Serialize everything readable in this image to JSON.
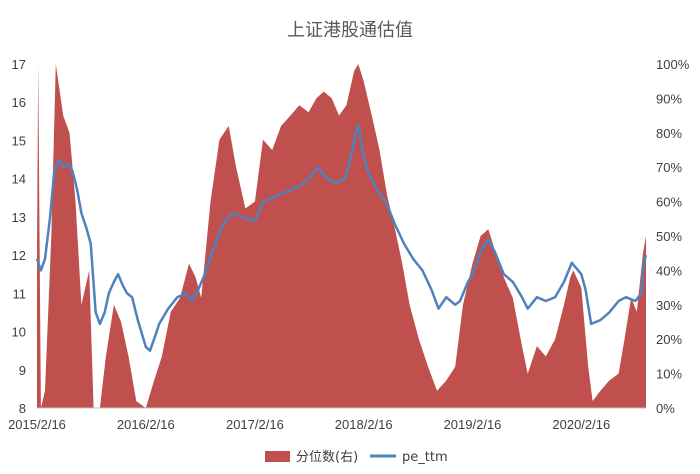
{
  "chart_data": {
    "type": "line",
    "title": "上证港股通估值",
    "x_tick_labels": [
      "2015/2/16",
      "2016/2/16",
      "2017/2/16",
      "2018/2/16",
      "2019/2/16",
      "2020/2/16"
    ],
    "x_range": [
      "2015-02-16",
      "2020-09-20"
    ],
    "y_left": {
      "min": 8,
      "max": 17,
      "ticks": [
        "8",
        "9",
        "10",
        "11",
        "12",
        "13",
        "14",
        "15",
        "16",
        "17"
      ]
    },
    "y_right": {
      "min": 0,
      "max": 100,
      "ticks": [
        "0%",
        "10%",
        "20%",
        "30%",
        "40%",
        "50%",
        "60%",
        "70%",
        "80%",
        "90%",
        "100%"
      ]
    },
    "grid": false,
    "legend_position": "bottom",
    "series": [
      {
        "name": "分位数(右)",
        "type": "area",
        "axis": "right",
        "color": "#c0504d",
        "points": [
          [
            "2015-02-16",
            45
          ],
          [
            "2015-02-20",
            100
          ],
          [
            "2015-03-01",
            0
          ],
          [
            "2015-03-15",
            5
          ],
          [
            "2015-04-05",
            50
          ],
          [
            "2015-04-20",
            100
          ],
          [
            "2015-05-15",
            85
          ],
          [
            "2015-06-05",
            80
          ],
          [
            "2015-06-25",
            60
          ],
          [
            "2015-07-15",
            30
          ],
          [
            "2015-08-10",
            40
          ],
          [
            "2015-08-25",
            0
          ],
          [
            "2015-09-15",
            0
          ],
          [
            "2015-10-05",
            15
          ],
          [
            "2015-11-01",
            30
          ],
          [
            "2015-11-25",
            25
          ],
          [
            "2015-12-20",
            15
          ],
          [
            "2016-01-15",
            2
          ],
          [
            "2016-02-16",
            0
          ],
          [
            "2016-03-15",
            8
          ],
          [
            "2016-04-10",
            15
          ],
          [
            "2016-05-10",
            28
          ],
          [
            "2016-06-10",
            32
          ],
          [
            "2016-07-10",
            42
          ],
          [
            "2016-08-01",
            38
          ],
          [
            "2016-08-20",
            32
          ],
          [
            "2016-09-20",
            60
          ],
          [
            "2016-10-20",
            78
          ],
          [
            "2016-11-20",
            82
          ],
          [
            "2016-12-15",
            70
          ],
          [
            "2017-01-15",
            58
          ],
          [
            "2017-02-16",
            60
          ],
          [
            "2017-03-15",
            78
          ],
          [
            "2017-04-15",
            75
          ],
          [
            "2017-05-15",
            82
          ],
          [
            "2017-06-15",
            85
          ],
          [
            "2017-07-15",
            88
          ],
          [
            "2017-08-15",
            86
          ],
          [
            "2017-09-10",
            90
          ],
          [
            "2017-10-05",
            92
          ],
          [
            "2017-11-01",
            90
          ],
          [
            "2017-11-25",
            85
          ],
          [
            "2017-12-20",
            88
          ],
          [
            "2018-01-15",
            98
          ],
          [
            "2018-01-29",
            100
          ],
          [
            "2018-02-16",
            95
          ],
          [
            "2018-03-15",
            85
          ],
          [
            "2018-04-10",
            75
          ],
          [
            "2018-05-05",
            62
          ],
          [
            "2018-06-01",
            52
          ],
          [
            "2018-06-25",
            42
          ],
          [
            "2018-07-20",
            30
          ],
          [
            "2018-08-20",
            20
          ],
          [
            "2018-09-20",
            12
          ],
          [
            "2018-10-20",
            5
          ],
          [
            "2018-11-20",
            8
          ],
          [
            "2018-12-20",
            12
          ],
          [
            "2019-01-15",
            30
          ],
          [
            "2019-02-16",
            42
          ],
          [
            "2019-03-15",
            50
          ],
          [
            "2019-04-10",
            52
          ],
          [
            "2019-05-05",
            45
          ],
          [
            "2019-06-01",
            38
          ],
          [
            "2019-07-01",
            32
          ],
          [
            "2019-08-01",
            18
          ],
          [
            "2019-08-20",
            10
          ],
          [
            "2019-09-20",
            18
          ],
          [
            "2019-10-20",
            15
          ],
          [
            "2019-11-20",
            20
          ],
          [
            "2019-12-20",
            30
          ],
          [
            "2020-01-10",
            38
          ],
          [
            "2020-01-20",
            40
          ],
          [
            "2020-02-16",
            35
          ],
          [
            "2020-03-10",
            12
          ],
          [
            "2020-03-25",
            2
          ],
          [
            "2020-04-20",
            5
          ],
          [
            "2020-05-20",
            8
          ],
          [
            "2020-06-20",
            10
          ],
          [
            "2020-07-10",
            20
          ],
          [
            "2020-08-01",
            32
          ],
          [
            "2020-08-20",
            28
          ],
          [
            "2020-09-10",
            45
          ],
          [
            "2020-09-20",
            50
          ]
        ]
      },
      {
        "name": "pe_ttm",
        "type": "line",
        "axis": "left",
        "color": "#4f81bd",
        "points": [
          [
            "2015-02-16",
            11.9
          ],
          [
            "2015-03-01",
            11.6
          ],
          [
            "2015-03-15",
            11.9
          ],
          [
            "2015-04-01",
            13.0
          ],
          [
            "2015-04-15",
            14.2
          ],
          [
            "2015-05-01",
            14.5
          ],
          [
            "2015-05-15",
            14.3
          ],
          [
            "2015-06-01",
            14.4
          ],
          [
            "2015-06-15",
            14.2
          ],
          [
            "2015-07-01",
            13.7
          ],
          [
            "2015-07-15",
            13.1
          ],
          [
            "2015-08-01",
            12.7
          ],
          [
            "2015-08-15",
            12.3
          ],
          [
            "2015-09-01",
            10.5
          ],
          [
            "2015-09-15",
            10.2
          ],
          [
            "2015-10-01",
            10.5
          ],
          [
            "2015-10-15",
            11.0
          ],
          [
            "2015-11-01",
            11.3
          ],
          [
            "2015-11-15",
            11.5
          ],
          [
            "2015-12-01",
            11.2
          ],
          [
            "2015-12-15",
            11.0
          ],
          [
            "2016-01-01",
            10.9
          ],
          [
            "2016-01-20",
            10.3
          ],
          [
            "2016-02-16",
            9.6
          ],
          [
            "2016-03-01",
            9.5
          ],
          [
            "2016-03-15",
            9.8
          ],
          [
            "2016-04-01",
            10.2
          ],
          [
            "2016-05-01",
            10.6
          ],
          [
            "2016-06-01",
            10.9
          ],
          [
            "2016-07-01",
            11.0
          ],
          [
            "2016-07-20",
            10.8
          ],
          [
            "2016-08-10",
            11.1
          ],
          [
            "2016-09-01",
            11.5
          ],
          [
            "2016-10-01",
            12.2
          ],
          [
            "2016-11-01",
            12.8
          ],
          [
            "2016-12-01",
            13.1
          ],
          [
            "2017-01-01",
            13.0
          ],
          [
            "2017-02-16",
            12.9
          ],
          [
            "2017-03-15",
            13.4
          ],
          [
            "2017-04-15",
            13.5
          ],
          [
            "2017-05-15",
            13.6
          ],
          [
            "2017-06-15",
            13.7
          ],
          [
            "2017-07-15",
            13.8
          ],
          [
            "2017-08-15",
            14.0
          ],
          [
            "2017-09-15",
            14.3
          ],
          [
            "2017-10-15",
            14.0
          ],
          [
            "2017-11-15",
            13.9
          ],
          [
            "2017-12-15",
            14.0
          ],
          [
            "2018-01-05",
            14.6
          ],
          [
            "2018-01-20",
            15.2
          ],
          [
            "2018-01-29",
            15.4
          ],
          [
            "2018-02-08",
            14.9
          ],
          [
            "2018-02-16",
            14.6
          ],
          [
            "2018-03-01",
            14.2
          ],
          [
            "2018-03-20",
            13.9
          ],
          [
            "2018-04-10",
            13.6
          ],
          [
            "2018-05-01",
            13.4
          ],
          [
            "2018-06-01",
            12.8
          ],
          [
            "2018-07-01",
            12.3
          ],
          [
            "2018-08-01",
            11.9
          ],
          [
            "2018-09-01",
            11.6
          ],
          [
            "2018-10-01",
            11.1
          ],
          [
            "2018-10-25",
            10.6
          ],
          [
            "2018-11-20",
            10.9
          ],
          [
            "2018-12-20",
            10.7
          ],
          [
            "2019-01-05",
            10.8
          ],
          [
            "2019-02-01",
            11.3
          ],
          [
            "2019-02-16",
            11.5
          ],
          [
            "2019-03-15",
            12.1
          ],
          [
            "2019-04-10",
            12.4
          ],
          [
            "2019-05-01",
            12.1
          ],
          [
            "2019-06-01",
            11.5
          ],
          [
            "2019-07-01",
            11.3
          ],
          [
            "2019-08-01",
            10.9
          ],
          [
            "2019-08-20",
            10.6
          ],
          [
            "2019-09-20",
            10.9
          ],
          [
            "2019-10-20",
            10.8
          ],
          [
            "2019-11-20",
            10.9
          ],
          [
            "2019-12-20",
            11.3
          ],
          [
            "2020-01-15",
            11.8
          ],
          [
            "2020-02-16",
            11.5
          ],
          [
            "2020-03-01",
            11.1
          ],
          [
            "2020-03-20",
            10.2
          ],
          [
            "2020-04-20",
            10.3
          ],
          [
            "2020-05-20",
            10.5
          ],
          [
            "2020-06-20",
            10.8
          ],
          [
            "2020-07-15",
            10.9
          ],
          [
            "2020-08-15",
            10.8
          ],
          [
            "2020-09-05",
            11.0
          ],
          [
            "2020-09-12",
            11.8
          ],
          [
            "2020-09-20",
            12.0
          ]
        ]
      }
    ]
  }
}
